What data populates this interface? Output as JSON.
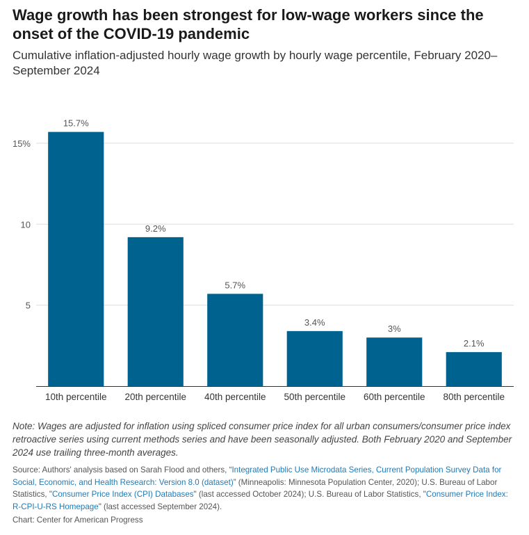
{
  "header": {
    "title": "Wage growth has been strongest for low-wage workers since the onset of the COVID-19 pandemic",
    "subtitle": "Cumulative inflation-adjusted hourly wage growth by hourly wage percentile, February 2020–September 2024"
  },
  "chart_data": {
    "type": "bar",
    "categories": [
      "10th percentile",
      "20th percentile",
      "40th percentile",
      "50th percentile",
      "60th percentile",
      "80th percentile"
    ],
    "values": [
      15.7,
      9.2,
      5.7,
      3.4,
      3.0,
      2.1
    ],
    "value_labels": [
      "15.7%",
      "9.2%",
      "5.7%",
      "3.4%",
      "3%",
      "2.1%"
    ],
    "y_ticks": [
      5,
      10,
      15
    ],
    "y_tick_labels": [
      "5",
      "10",
      "15%"
    ],
    "ylim": [
      0,
      16.5
    ],
    "grid": true,
    "bar_color": "#00628f",
    "xlabel": "",
    "ylabel": ""
  },
  "footer": {
    "note": "Note: Wages are adjusted for inflation using spliced consumer price index for all urban consumers/consumer price index retroactive series using current methods series and have been seasonally adjusted. Both February 2020 and September 2024 use trailing three-month averages.",
    "source_prefix": "Source: Authors' analysis based on Sarah Flood and others, “",
    "source_link1": "Integrated Public Use Microdata Series, Current Population Survey Data for Social, Economic, and Health Research: Version 8.0 (dataset)",
    "source_mid1": "” (Minneapolis: Minnesota Population Center, 2020); U.S. Bureau of Labor Statistics, \"",
    "source_link2": "Consumer Price Index (CPI) Databases",
    "source_mid2": "\" (last accessed October 2024); U.S. Bureau of Labor Statistics, \"",
    "source_link3": "Consumer Price Index: R-CPI-U-RS Homepage",
    "source_suffix": "\" (last accessed September 2024).",
    "credit": "Chart: Center for American Progress",
    "link_color": "#1f7ab5"
  }
}
